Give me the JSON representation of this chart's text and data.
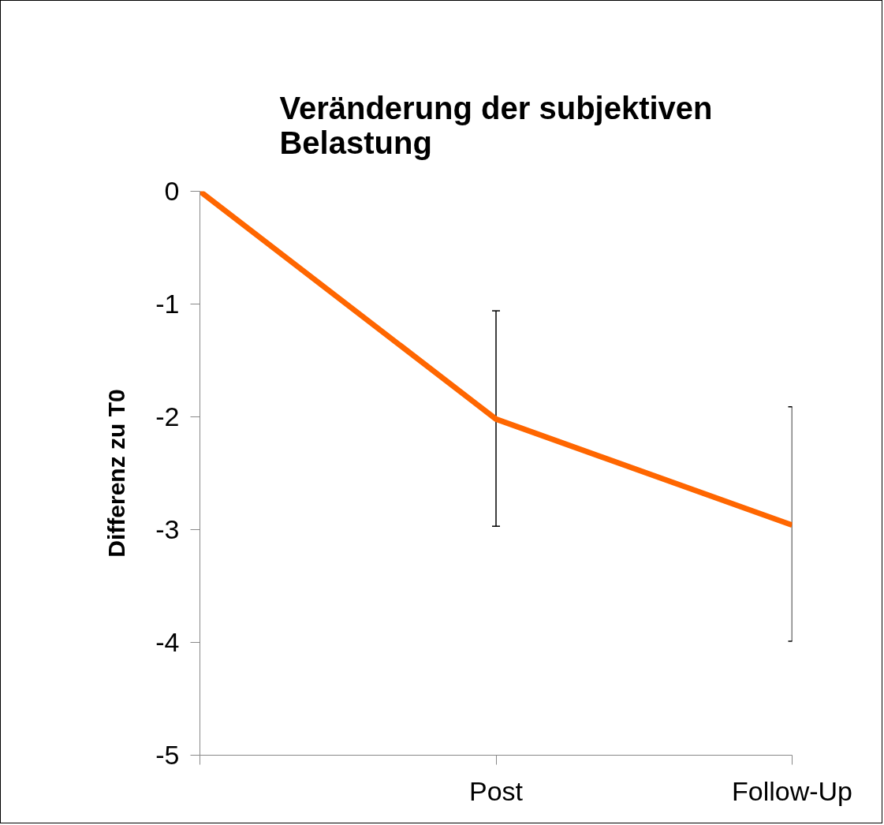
{
  "chart_data": {
    "type": "line",
    "title": "Veränderung der subjektiven Belastung",
    "ylabel": "Differenz zu T0",
    "categories": [
      null,
      "Post",
      "Follow-Up"
    ],
    "series": [
      {
        "color": "#ff6600",
        "values": [
          0,
          -2.02,
          -2.96
        ],
        "errors": [
          null,
          [
            -2.97,
            -1.06
          ],
          [
            -3.99,
            -1.91
          ]
        ]
      }
    ],
    "ylim": [
      -5,
      0
    ],
    "yticks": [
      -5,
      -4,
      -3,
      -2,
      -1,
      0
    ],
    "grid": false,
    "marker": "none",
    "line_style": "solid"
  }
}
